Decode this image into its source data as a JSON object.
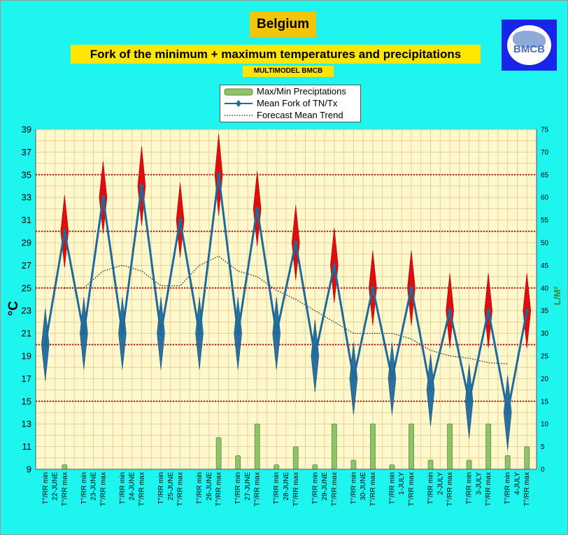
{
  "header": {
    "country": "Belgium",
    "subtitle": "Fork of the minimum + maximum temperatures and precipitations",
    "model": "MULTIMODEL BMCB"
  },
  "logo": {
    "text": "BMCB"
  },
  "legend": {
    "items": [
      {
        "label": "Max/Min Preciptations",
        "symbol": "bar"
      },
      {
        "label": "Mean Fork of TN/Tx",
        "symbol": "line-diamond"
      },
      {
        "label": "Forecast Mean Trend",
        "symbol": "dotted-line"
      }
    ]
  },
  "colors": {
    "background": "#1ef5ef",
    "plot_area": "#fff8cc",
    "grid": "#e2c88c",
    "temp_line": "#1f6a9c",
    "precip_bar": "#8fc26a",
    "spread": "#e00d0d",
    "ref_lines": "#cc1111",
    "right_axis_title": "#2e8b3a"
  },
  "chart_data": {
    "type": "line",
    "ylabel": "°C",
    "y2label": "L/M²",
    "ylim": [
      9,
      39
    ],
    "y_ticks": [
      9,
      11,
      13,
      15,
      17,
      19,
      21,
      23,
      25,
      27,
      29,
      31,
      33,
      35,
      37,
      39
    ],
    "y2lim": [
      0,
      75
    ],
    "y2_ticks": [
      0,
      5,
      10,
      15,
      20,
      25,
      30,
      35,
      40,
      45,
      50,
      55,
      60,
      65,
      70,
      75
    ],
    "reference_lines": [
      35,
      30,
      25,
      20,
      15
    ],
    "grid": true,
    "legend_position": "top-center",
    "dates": [
      "22-JUNE",
      "23-JUNE",
      "24-JUNE",
      "25-JUNE",
      "26-JUNE",
      "27-JUNE",
      "28-JUNE",
      "29-JUNE",
      "30-JUNE",
      "1-JULY",
      "2-JULY",
      "3-JULY",
      "4-JULY"
    ],
    "categories": [
      "T°/RR min",
      "T°/RR max",
      "T°/RR min",
      "T°/RR max",
      "T°/RR min",
      "T°/RR max",
      "T°/RR min",
      "T°/RR max",
      "T°/RR min",
      "T°/RR max",
      "T°/RR min",
      "T°/RR max",
      "T°/RR min",
      "T°/RR max",
      "T°/RR min",
      "T°/RR max",
      "T°/RR min",
      "T°/RR max",
      "T°/RR min",
      "T°/RR max",
      "T°/RR min",
      "T°/RR max",
      "T°/RR min",
      "T°/RR max",
      "T°/RR min",
      "T°/RR max"
    ],
    "series": [
      {
        "name": "Mean Fork of TN/Tx",
        "values": [
          20,
          30,
          21,
          33,
          21,
          34,
          21,
          31,
          21,
          35,
          21,
          32,
          21,
          29,
          19,
          27,
          17,
          25,
          17,
          25,
          16,
          23,
          15,
          23,
          14,
          23
        ],
        "spread": [
          3.2,
          3.2,
          3.2,
          3.2,
          3.2,
          3.5,
          3.2,
          3.3,
          3.2,
          3.6,
          3.2,
          3.3,
          3.2,
          3.3,
          3.2,
          3.3,
          3.2,
          3.3,
          3.2,
          3.3,
          3.2,
          3.3,
          3.3,
          3.3,
          3.3,
          3.3
        ]
      },
      {
        "name": "Forecast Mean Trend",
        "values": [
          null,
          25,
          25,
          26.5,
          27,
          26.5,
          25.2,
          25.2,
          27,
          27.8,
          26.5,
          26,
          24.8,
          24,
          23,
          22,
          21,
          21,
          21,
          20.5,
          19.5,
          19,
          18.8,
          18.4,
          18.3,
          null
        ]
      },
      {
        "name": "Max/Min Preciptations",
        "axis": "right",
        "values": [
          0,
          1,
          0,
          0,
          0,
          0,
          0,
          0,
          0,
          7,
          3,
          10,
          1,
          5,
          1,
          10,
          2,
          10,
          1,
          10,
          2,
          10,
          2,
          10,
          3,
          5
        ]
      }
    ]
  }
}
